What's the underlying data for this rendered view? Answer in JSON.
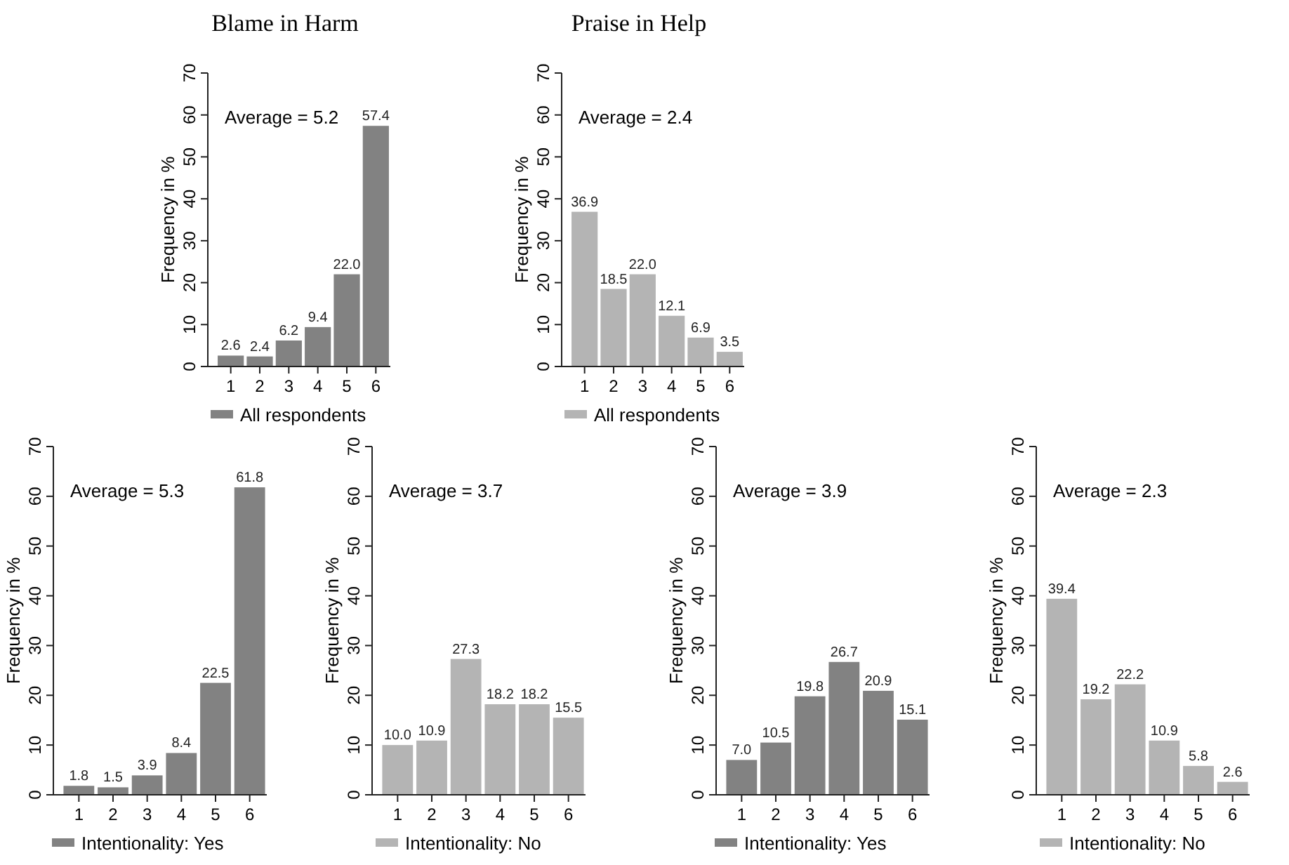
{
  "chart_data": [
    {
      "type": "bar",
      "title": "Blame in Harm",
      "categories": [
        "1",
        "2",
        "3",
        "4",
        "5",
        "6"
      ],
      "series": [
        {
          "name": "All respondents",
          "color": "#828282",
          "values": [
            2.6,
            2.4,
            6.2,
            9.4,
            22.0,
            57.4
          ],
          "value_labels": [
            "2.6",
            "2.4",
            "6.2",
            "9.4",
            "22.0",
            "57.4"
          ]
        }
      ],
      "ylim": [
        0,
        70
      ],
      "yticks": [
        0,
        10,
        20,
        30,
        40,
        50,
        60,
        70
      ],
      "ylabel": "Frequency in %",
      "annotations": [
        "Average = 5.2"
      ],
      "legend": "bottom",
      "grid": false
    },
    {
      "type": "bar",
      "title": "Praise in Help",
      "categories": [
        "1",
        "2",
        "3",
        "4",
        "5",
        "6"
      ],
      "series": [
        {
          "name": "All respondents",
          "color": "#b4b4b4",
          "values": [
            36.9,
            18.5,
            22.0,
            12.1,
            6.9,
            3.5
          ],
          "value_labels": [
            "36.9",
            "18.5",
            "22.0",
            "12.1",
            "6.9",
            "3.5"
          ]
        }
      ],
      "ylim": [
        0,
        70
      ],
      "yticks": [
        0,
        10,
        20,
        30,
        40,
        50,
        60,
        70
      ],
      "ylabel": "Frequency in %",
      "annotations": [
        "Average = 2.4"
      ],
      "legend": "bottom",
      "grid": false
    },
    {
      "type": "bar",
      "categories": [
        "1",
        "2",
        "3",
        "4",
        "5",
        "6"
      ],
      "series": [
        {
          "name": "Intentionality: Yes",
          "color": "#828282",
          "values": [
            1.8,
            1.5,
            3.9,
            8.4,
            22.5,
            61.8
          ],
          "value_labels": [
            "1.8",
            "1.5",
            "3.9",
            "8.4",
            "22.5",
            "61.8"
          ]
        }
      ],
      "ylim": [
        0,
        70
      ],
      "yticks": [
        0,
        10,
        20,
        30,
        40,
        50,
        60,
        70
      ],
      "ylabel": "Frequency in %",
      "annotations": [
        "Average = 5.3"
      ],
      "legend": "bottom",
      "grid": false
    },
    {
      "type": "bar",
      "categories": [
        "1",
        "2",
        "3",
        "4",
        "5",
        "6"
      ],
      "series": [
        {
          "name": "Intentionality: No",
          "color": "#b4b4b4",
          "values": [
            10.0,
            10.9,
            27.3,
            18.2,
            18.2,
            15.5
          ],
          "value_labels": [
            "10.0",
            "10.9",
            "27.3",
            "18.2",
            "18.2",
            "15.5"
          ]
        }
      ],
      "ylim": [
        0,
        70
      ],
      "yticks": [
        0,
        10,
        20,
        30,
        40,
        50,
        60,
        70
      ],
      "ylabel": "Frequency in %",
      "annotations": [
        "Average = 3.7"
      ],
      "legend": "bottom",
      "grid": false
    },
    {
      "type": "bar",
      "categories": [
        "1",
        "2",
        "3",
        "4",
        "5",
        "6"
      ],
      "series": [
        {
          "name": "Intentionality: Yes",
          "color": "#828282",
          "values": [
            7.0,
            10.5,
            19.8,
            26.7,
            20.9,
            15.1
          ],
          "value_labels": [
            "7.0",
            "10.5",
            "19.8",
            "26.7",
            "20.9",
            "15.1"
          ]
        }
      ],
      "ylim": [
        0,
        70
      ],
      "yticks": [
        0,
        10,
        20,
        30,
        40,
        50,
        60,
        70
      ],
      "ylabel": "Frequency in %",
      "annotations": [
        "Average = 3.9"
      ],
      "legend": "bottom",
      "grid": false
    },
    {
      "type": "bar",
      "categories": [
        "1",
        "2",
        "3",
        "4",
        "5",
        "6"
      ],
      "series": [
        {
          "name": "Intentionality: No",
          "color": "#b4b4b4",
          "values": [
            39.4,
            19.2,
            22.2,
            10.9,
            5.8,
            2.6
          ],
          "value_labels": [
            "39.4",
            "19.2",
            "22.2",
            "10.9",
            "5.8",
            "2.6"
          ]
        }
      ],
      "ylim": [
        0,
        70
      ],
      "yticks": [
        0,
        10,
        20,
        30,
        40,
        50,
        60,
        70
      ],
      "ylabel": "Frequency in %",
      "annotations": [
        "Average = 2.3"
      ],
      "legend": "bottom",
      "grid": false
    }
  ]
}
